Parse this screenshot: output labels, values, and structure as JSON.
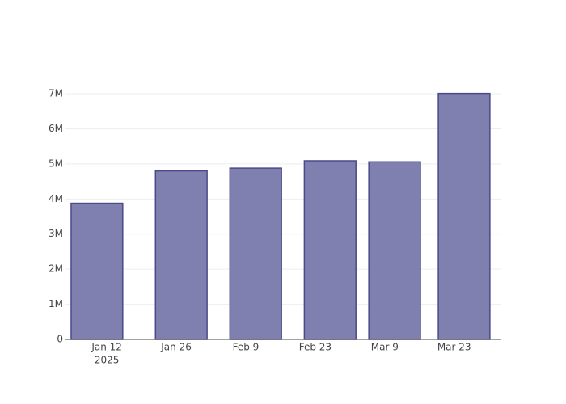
{
  "chart_data": {
    "type": "bar",
    "x": [
      "2025-01-10",
      "2025-01-27",
      "2025-02-11",
      "2025-02-26",
      "2025-03-11",
      "2025-03-25"
    ],
    "values": [
      3880000,
      4800000,
      4880000,
      5090000,
      5060000,
      7010000
    ],
    "color": "#7f7fb0",
    "line_color": "#4a4a8a",
    "xlim": [
      "2025-01-03T12:00:00Z",
      "2025-04-01T12:00:00Z"
    ],
    "xticks": [
      {
        "value": "2025-01-12",
        "label": "Jan 12",
        "sublabel": "2025"
      },
      {
        "value": "2025-01-26",
        "label": "Jan 26"
      },
      {
        "value": "2025-02-09",
        "label": "Feb 9"
      },
      {
        "value": "2025-02-23",
        "label": "Feb 23"
      },
      {
        "value": "2025-03-09",
        "label": "Mar 9"
      },
      {
        "value": "2025-03-23",
        "label": "Mar 23"
      }
    ],
    "ylim": [
      0,
      7370000
    ],
    "yticks": [
      0,
      {
        "value": 1000000,
        "label": "1M"
      },
      {
        "value": 2000000,
        "label": "2M"
      },
      {
        "value": 3000000,
        "label": "3M"
      },
      {
        "value": 4000000,
        "label": "4M"
      },
      {
        "value": 5000000,
        "label": "5M"
      },
      {
        "value": 6000000,
        "label": "6M"
      },
      {
        "value": 7000000,
        "label": "7M"
      }
    ],
    "grid": true
  }
}
